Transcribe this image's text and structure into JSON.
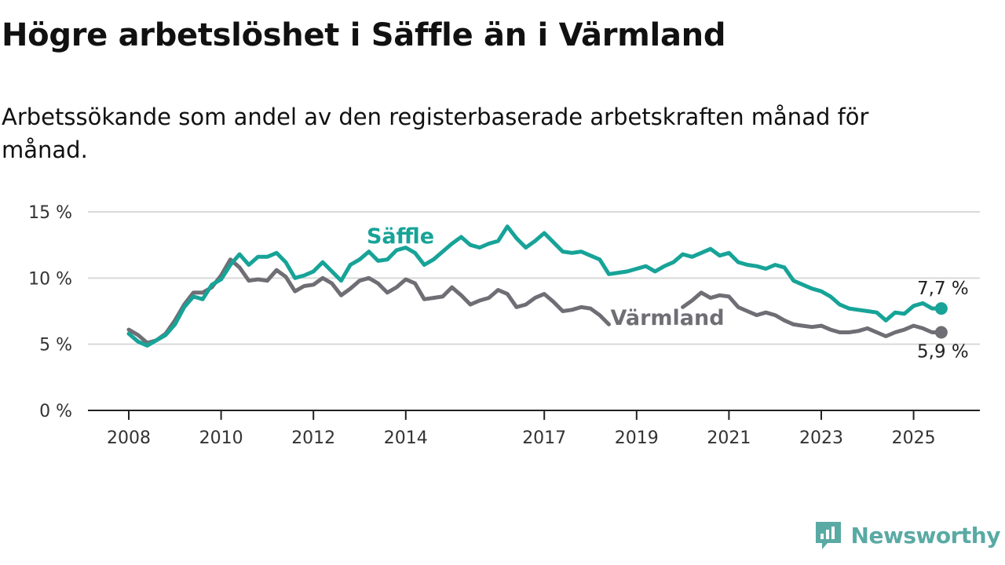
{
  "header": {
    "title": "Högre arbetslöshet i Säffle än i Värmland",
    "subtitle": "Arbetssökande som andel av den registerbaserade arbetskraften månad för månad."
  },
  "brand": {
    "name": "Newsworthy",
    "icon": "newsworthy-logo-icon",
    "color": "#5aaaa4"
  },
  "chart_data": {
    "type": "line",
    "title": "Högre arbetslöshet i Säffle än i Värmland",
    "subtitle": "Arbetssökande som andel av den registerbaserade arbetskraften månad för månad.",
    "ylim": [
      0,
      15
    ],
    "y_ticks": [
      "0 %",
      "5 %",
      "10 %",
      "15 %"
    ],
    "x_range": [
      2008.0,
      2026.5
    ],
    "x_ticks": [
      "2008",
      "2010",
      "2012",
      "2014",
      "2017",
      "2019",
      "2021",
      "2023",
      "2025"
    ],
    "grid": "horizontal",
    "series": [
      {
        "name": "Säffle",
        "color": "#17a398",
        "end_label": "7,7 %",
        "points": [
          [
            2008.0,
            5.8
          ],
          [
            2008.2,
            5.2
          ],
          [
            2008.4,
            4.9
          ],
          [
            2008.6,
            5.3
          ],
          [
            2008.8,
            5.7
          ],
          [
            2009.0,
            6.5
          ],
          [
            2009.2,
            7.8
          ],
          [
            2009.4,
            8.6
          ],
          [
            2009.6,
            8.4
          ],
          [
            2009.8,
            9.5
          ],
          [
            2010.0,
            9.9
          ],
          [
            2010.2,
            11.0
          ],
          [
            2010.4,
            11.8
          ],
          [
            2010.6,
            11.0
          ],
          [
            2010.8,
            11.6
          ],
          [
            2011.0,
            11.6
          ],
          [
            2011.2,
            11.9
          ],
          [
            2011.4,
            11.2
          ],
          [
            2011.6,
            10.0
          ],
          [
            2011.8,
            10.2
          ],
          [
            2012.0,
            10.5
          ],
          [
            2012.2,
            11.2
          ],
          [
            2012.4,
            10.5
          ],
          [
            2012.6,
            9.8
          ],
          [
            2012.8,
            11.0
          ],
          [
            2013.0,
            11.4
          ],
          [
            2013.2,
            12.0
          ],
          [
            2013.4,
            11.3
          ],
          [
            2013.6,
            11.4
          ],
          [
            2013.8,
            12.1
          ],
          [
            2014.0,
            12.3
          ],
          [
            2014.2,
            11.9
          ],
          [
            2014.4,
            11.0
          ],
          [
            2014.6,
            11.4
          ],
          [
            2014.8,
            12.0
          ],
          [
            2015.0,
            12.6
          ],
          [
            2015.2,
            13.1
          ],
          [
            2015.4,
            12.5
          ],
          [
            2015.6,
            12.3
          ],
          [
            2015.8,
            12.6
          ],
          [
            2016.0,
            12.8
          ],
          [
            2016.2,
            13.9
          ],
          [
            2016.4,
            13.0
          ],
          [
            2016.6,
            12.3
          ],
          [
            2016.8,
            12.8
          ],
          [
            2017.0,
            13.4
          ],
          [
            2017.2,
            12.7
          ],
          [
            2017.4,
            12.0
          ],
          [
            2017.6,
            11.9
          ],
          [
            2017.8,
            12.0
          ],
          [
            2018.0,
            11.7
          ],
          [
            2018.2,
            11.4
          ],
          [
            2018.4,
            10.3
          ],
          [
            2018.6,
            10.4
          ],
          [
            2018.8,
            10.5
          ],
          [
            2019.0,
            10.7
          ],
          [
            2019.2,
            10.9
          ],
          [
            2019.4,
            10.5
          ],
          [
            2019.6,
            10.9
          ],
          [
            2019.8,
            11.2
          ],
          [
            2020.0,
            11.8
          ],
          [
            2020.2,
            11.6
          ],
          [
            2020.4,
            11.9
          ],
          [
            2020.6,
            12.2
          ],
          [
            2020.8,
            11.7
          ],
          [
            2021.0,
            11.9
          ],
          [
            2021.2,
            11.2
          ],
          [
            2021.4,
            11.0
          ],
          [
            2021.6,
            10.9
          ],
          [
            2021.8,
            10.7
          ],
          [
            2022.0,
            11.0
          ],
          [
            2022.2,
            10.8
          ],
          [
            2022.4,
            9.8
          ],
          [
            2022.6,
            9.5
          ],
          [
            2022.8,
            9.2
          ],
          [
            2023.0,
            9.0
          ],
          [
            2023.2,
            8.6
          ],
          [
            2023.4,
            8.0
          ],
          [
            2023.6,
            7.7
          ],
          [
            2023.8,
            7.6
          ],
          [
            2024.0,
            7.5
          ],
          [
            2024.2,
            7.4
          ],
          [
            2024.4,
            6.8
          ],
          [
            2024.6,
            7.4
          ],
          [
            2024.8,
            7.3
          ],
          [
            2025.0,
            7.9
          ],
          [
            2025.2,
            8.1
          ],
          [
            2025.4,
            7.7
          ],
          [
            2025.6,
            7.7
          ]
        ]
      },
      {
        "name": "Värmland",
        "color": "#6f6e74",
        "end_label": "5,9 %",
        "points": [
          [
            2008.0,
            6.1
          ],
          [
            2008.2,
            5.7
          ],
          [
            2008.4,
            5.1
          ],
          [
            2008.6,
            5.3
          ],
          [
            2008.8,
            5.8
          ],
          [
            2009.0,
            6.8
          ],
          [
            2009.2,
            8.0
          ],
          [
            2009.4,
            8.9
          ],
          [
            2009.6,
            8.9
          ],
          [
            2009.8,
            9.3
          ],
          [
            2010.0,
            10.2
          ],
          [
            2010.2,
            11.4
          ],
          [
            2010.4,
            10.8
          ],
          [
            2010.6,
            9.8
          ],
          [
            2010.8,
            9.9
          ],
          [
            2011.0,
            9.8
          ],
          [
            2011.2,
            10.6
          ],
          [
            2011.4,
            10.1
          ],
          [
            2011.6,
            9.0
          ],
          [
            2011.8,
            9.4
          ],
          [
            2012.0,
            9.5
          ],
          [
            2012.2,
            10.0
          ],
          [
            2012.4,
            9.6
          ],
          [
            2012.6,
            8.7
          ],
          [
            2012.8,
            9.2
          ],
          [
            2013.0,
            9.8
          ],
          [
            2013.2,
            10.0
          ],
          [
            2013.4,
            9.6
          ],
          [
            2013.6,
            8.9
          ],
          [
            2013.8,
            9.3
          ],
          [
            2014.0,
            9.9
          ],
          [
            2014.2,
            9.6
          ],
          [
            2014.4,
            8.4
          ],
          [
            2014.6,
            8.5
          ],
          [
            2014.8,
            8.6
          ],
          [
            2015.0,
            9.3
          ],
          [
            2015.2,
            8.7
          ],
          [
            2015.4,
            8.0
          ],
          [
            2015.6,
            8.3
          ],
          [
            2015.8,
            8.5
          ],
          [
            2016.0,
            9.1
          ],
          [
            2016.2,
            8.8
          ],
          [
            2016.4,
            7.8
          ],
          [
            2016.6,
            8.0
          ],
          [
            2016.8,
            8.5
          ],
          [
            2017.0,
            8.8
          ],
          [
            2017.2,
            8.2
          ],
          [
            2017.4,
            7.5
          ],
          [
            2017.6,
            7.6
          ],
          [
            2017.8,
            7.8
          ],
          [
            2018.0,
            7.7
          ],
          [
            2018.2,
            7.2
          ],
          [
            2018.4,
            6.5
          ],
          [
            2020.0,
            7.8
          ],
          [
            2020.2,
            8.3
          ],
          [
            2020.4,
            8.9
          ],
          [
            2020.6,
            8.5
          ],
          [
            2020.8,
            8.7
          ],
          [
            2021.0,
            8.6
          ],
          [
            2021.2,
            7.8
          ],
          [
            2021.4,
            7.5
          ],
          [
            2021.6,
            7.2
          ],
          [
            2021.8,
            7.4
          ],
          [
            2022.0,
            7.2
          ],
          [
            2022.2,
            6.8
          ],
          [
            2022.4,
            6.5
          ],
          [
            2022.6,
            6.4
          ],
          [
            2022.8,
            6.3
          ],
          [
            2023.0,
            6.4
          ],
          [
            2023.2,
            6.1
          ],
          [
            2023.4,
            5.9
          ],
          [
            2023.6,
            5.9
          ],
          [
            2023.8,
            6.0
          ],
          [
            2024.0,
            6.2
          ],
          [
            2024.2,
            5.9
          ],
          [
            2024.4,
            5.6
          ],
          [
            2024.6,
            5.9
          ],
          [
            2024.8,
            6.1
          ],
          [
            2025.0,
            6.4
          ],
          [
            2025.2,
            6.2
          ],
          [
            2025.4,
            5.9
          ],
          [
            2025.6,
            5.9
          ]
        ]
      }
    ]
  }
}
